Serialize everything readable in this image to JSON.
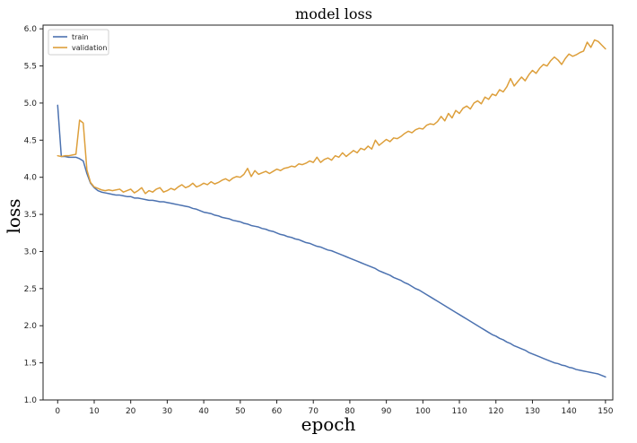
{
  "chart_data": {
    "type": "line",
    "title": "model loss",
    "xlabel": "epoch",
    "ylabel": "loss",
    "xlim": [
      -4,
      152
    ],
    "ylim": [
      1.0,
      6.05
    ],
    "xticks": [
      0,
      10,
      20,
      30,
      40,
      50,
      60,
      70,
      80,
      90,
      100,
      110,
      120,
      130,
      140,
      150
    ],
    "yticks": [
      1.0,
      1.5,
      2.0,
      2.5,
      3.0,
      3.5,
      4.0,
      4.5,
      5.0,
      5.5,
      6.0
    ],
    "grid": false,
    "legend_position": "top-left",
    "series": [
      {
        "name": "train",
        "color": "#4c72b0",
        "points": [
          [
            0,
            4.97
          ],
          [
            1,
            4.28
          ],
          [
            2,
            4.28
          ],
          [
            3,
            4.27
          ],
          [
            4,
            4.27
          ],
          [
            5,
            4.27
          ],
          [
            6,
            4.25
          ],
          [
            7,
            4.22
          ],
          [
            8,
            4.05
          ],
          [
            9,
            3.92
          ],
          [
            10,
            3.86
          ],
          [
            11,
            3.82
          ],
          [
            12,
            3.8
          ],
          [
            13,
            3.79
          ],
          [
            14,
            3.78
          ],
          [
            15,
            3.77
          ],
          [
            16,
            3.76
          ],
          [
            17,
            3.76
          ],
          [
            18,
            3.75
          ],
          [
            19,
            3.74
          ],
          [
            20,
            3.74
          ],
          [
            21,
            3.72
          ],
          [
            22,
            3.72
          ],
          [
            23,
            3.71
          ],
          [
            24,
            3.7
          ],
          [
            25,
            3.69
          ],
          [
            26,
            3.69
          ],
          [
            27,
            3.68
          ],
          [
            28,
            3.67
          ],
          [
            29,
            3.67
          ],
          [
            30,
            3.66
          ],
          [
            31,
            3.65
          ],
          [
            32,
            3.64
          ],
          [
            33,
            3.63
          ],
          [
            34,
            3.62
          ],
          [
            35,
            3.61
          ],
          [
            36,
            3.6
          ],
          [
            37,
            3.58
          ],
          [
            38,
            3.57
          ],
          [
            39,
            3.55
          ],
          [
            40,
            3.53
          ],
          [
            41,
            3.52
          ],
          [
            42,
            3.51
          ],
          [
            43,
            3.49
          ],
          [
            44,
            3.48
          ],
          [
            45,
            3.46
          ],
          [
            46,
            3.45
          ],
          [
            47,
            3.44
          ],
          [
            48,
            3.42
          ],
          [
            49,
            3.41
          ],
          [
            50,
            3.4
          ],
          [
            51,
            3.38
          ],
          [
            52,
            3.37
          ],
          [
            53,
            3.35
          ],
          [
            54,
            3.34
          ],
          [
            55,
            3.33
          ],
          [
            56,
            3.31
          ],
          [
            57,
            3.3
          ],
          [
            58,
            3.28
          ],
          [
            59,
            3.27
          ],
          [
            60,
            3.25
          ],
          [
            61,
            3.23
          ],
          [
            62,
            3.22
          ],
          [
            63,
            3.2
          ],
          [
            64,
            3.19
          ],
          [
            65,
            3.17
          ],
          [
            66,
            3.16
          ],
          [
            67,
            3.14
          ],
          [
            68,
            3.12
          ],
          [
            69,
            3.11
          ],
          [
            70,
            3.09
          ],
          [
            71,
            3.07
          ],
          [
            72,
            3.06
          ],
          [
            73,
            3.04
          ],
          [
            74,
            3.02
          ],
          [
            75,
            3.01
          ],
          [
            76,
            2.99
          ],
          [
            77,
            2.97
          ],
          [
            78,
            2.95
          ],
          [
            79,
            2.93
          ],
          [
            80,
            2.91
          ],
          [
            81,
            2.89
          ],
          [
            82,
            2.87
          ],
          [
            83,
            2.85
          ],
          [
            84,
            2.83
          ],
          [
            85,
            2.81
          ],
          [
            86,
            2.79
          ],
          [
            87,
            2.77
          ],
          [
            88,
            2.74
          ],
          [
            89,
            2.72
          ],
          [
            90,
            2.7
          ],
          [
            91,
            2.68
          ],
          [
            92,
            2.65
          ],
          [
            93,
            2.63
          ],
          [
            94,
            2.61
          ],
          [
            95,
            2.58
          ],
          [
            96,
            2.56
          ],
          [
            97,
            2.53
          ],
          [
            98,
            2.5
          ],
          [
            99,
            2.48
          ],
          [
            100,
            2.45
          ],
          [
            101,
            2.42
          ],
          [
            102,
            2.39
          ],
          [
            103,
            2.36
          ],
          [
            104,
            2.33
          ],
          [
            105,
            2.3
          ],
          [
            106,
            2.27
          ],
          [
            107,
            2.24
          ],
          [
            108,
            2.21
          ],
          [
            109,
            2.18
          ],
          [
            110,
            2.15
          ],
          [
            111,
            2.12
          ],
          [
            112,
            2.09
          ],
          [
            113,
            2.06
          ],
          [
            114,
            2.03
          ],
          [
            115,
            2.0
          ],
          [
            116,
            1.97
          ],
          [
            117,
            1.94
          ],
          [
            118,
            1.91
          ],
          [
            119,
            1.88
          ],
          [
            120,
            1.86
          ],
          [
            121,
            1.83
          ],
          [
            122,
            1.81
          ],
          [
            123,
            1.78
          ],
          [
            124,
            1.76
          ],
          [
            125,
            1.73
          ],
          [
            126,
            1.71
          ],
          [
            127,
            1.69
          ],
          [
            128,
            1.67
          ],
          [
            129,
            1.64
          ],
          [
            130,
            1.62
          ],
          [
            131,
            1.6
          ],
          [
            132,
            1.58
          ],
          [
            133,
            1.56
          ],
          [
            134,
            1.54
          ],
          [
            135,
            1.52
          ],
          [
            136,
            1.5
          ],
          [
            137,
            1.49
          ],
          [
            138,
            1.47
          ],
          [
            139,
            1.46
          ],
          [
            140,
            1.44
          ],
          [
            141,
            1.43
          ],
          [
            142,
            1.41
          ],
          [
            143,
            1.4
          ],
          [
            144,
            1.39
          ],
          [
            145,
            1.38
          ],
          [
            146,
            1.37
          ],
          [
            147,
            1.36
          ],
          [
            148,
            1.35
          ],
          [
            149,
            1.33
          ],
          [
            150,
            1.31
          ]
        ]
      },
      {
        "name": "validation",
        "color": "#dd9f3b",
        "points": [
          [
            0,
            4.29
          ],
          [
            1,
            4.28
          ],
          [
            2,
            4.29
          ],
          [
            3,
            4.29
          ],
          [
            4,
            4.3
          ],
          [
            5,
            4.31
          ],
          [
            6,
            4.77
          ],
          [
            7,
            4.73
          ],
          [
            8,
            4.1
          ],
          [
            9,
            3.93
          ],
          [
            10,
            3.87
          ],
          [
            11,
            3.85
          ],
          [
            12,
            3.83
          ],
          [
            13,
            3.82
          ],
          [
            14,
            3.83
          ],
          [
            15,
            3.82
          ],
          [
            16,
            3.83
          ],
          [
            17,
            3.84
          ],
          [
            18,
            3.8
          ],
          [
            19,
            3.82
          ],
          [
            20,
            3.84
          ],
          [
            21,
            3.79
          ],
          [
            22,
            3.82
          ],
          [
            23,
            3.86
          ],
          [
            24,
            3.78
          ],
          [
            25,
            3.82
          ],
          [
            26,
            3.8
          ],
          [
            27,
            3.84
          ],
          [
            28,
            3.86
          ],
          [
            29,
            3.8
          ],
          [
            30,
            3.82
          ],
          [
            31,
            3.85
          ],
          [
            32,
            3.83
          ],
          [
            33,
            3.87
          ],
          [
            34,
            3.9
          ],
          [
            35,
            3.86
          ],
          [
            36,
            3.88
          ],
          [
            37,
            3.92
          ],
          [
            38,
            3.87
          ],
          [
            39,
            3.89
          ],
          [
            40,
            3.92
          ],
          [
            41,
            3.9
          ],
          [
            42,
            3.94
          ],
          [
            43,
            3.91
          ],
          [
            44,
            3.93
          ],
          [
            45,
            3.96
          ],
          [
            46,
            3.98
          ],
          [
            47,
            3.95
          ],
          [
            48,
            3.99
          ],
          [
            49,
            4.01
          ],
          [
            50,
            4.0
          ],
          [
            51,
            4.04
          ],
          [
            52,
            4.12
          ],
          [
            53,
            4.01
          ],
          [
            54,
            4.09
          ],
          [
            55,
            4.04
          ],
          [
            56,
            4.06
          ],
          [
            57,
            4.08
          ],
          [
            58,
            4.05
          ],
          [
            59,
            4.08
          ],
          [
            60,
            4.11
          ],
          [
            61,
            4.09
          ],
          [
            62,
            4.12
          ],
          [
            63,
            4.13
          ],
          [
            64,
            4.15
          ],
          [
            65,
            4.14
          ],
          [
            66,
            4.18
          ],
          [
            67,
            4.17
          ],
          [
            68,
            4.19
          ],
          [
            69,
            4.22
          ],
          [
            70,
            4.2
          ],
          [
            71,
            4.27
          ],
          [
            72,
            4.2
          ],
          [
            73,
            4.24
          ],
          [
            74,
            4.26
          ],
          [
            75,
            4.23
          ],
          [
            76,
            4.29
          ],
          [
            77,
            4.27
          ],
          [
            78,
            4.33
          ],
          [
            79,
            4.28
          ],
          [
            80,
            4.32
          ],
          [
            81,
            4.36
          ],
          [
            82,
            4.33
          ],
          [
            83,
            4.39
          ],
          [
            84,
            4.37
          ],
          [
            85,
            4.42
          ],
          [
            86,
            4.38
          ],
          [
            87,
            4.5
          ],
          [
            88,
            4.43
          ],
          [
            89,
            4.47
          ],
          [
            90,
            4.51
          ],
          [
            91,
            4.48
          ],
          [
            92,
            4.53
          ],
          [
            93,
            4.52
          ],
          [
            94,
            4.55
          ],
          [
            95,
            4.59
          ],
          [
            96,
            4.62
          ],
          [
            97,
            4.6
          ],
          [
            98,
            4.64
          ],
          [
            99,
            4.66
          ],
          [
            100,
            4.65
          ],
          [
            101,
            4.7
          ],
          [
            102,
            4.72
          ],
          [
            103,
            4.71
          ],
          [
            104,
            4.75
          ],
          [
            105,
            4.82
          ],
          [
            106,
            4.76
          ],
          [
            107,
            4.86
          ],
          [
            108,
            4.8
          ],
          [
            109,
            4.9
          ],
          [
            110,
            4.86
          ],
          [
            111,
            4.93
          ],
          [
            112,
            4.96
          ],
          [
            113,
            4.92
          ],
          [
            114,
            5.0
          ],
          [
            115,
            5.03
          ],
          [
            116,
            4.99
          ],
          [
            117,
            5.08
          ],
          [
            118,
            5.05
          ],
          [
            119,
            5.12
          ],
          [
            120,
            5.1
          ],
          [
            121,
            5.18
          ],
          [
            122,
            5.15
          ],
          [
            123,
            5.22
          ],
          [
            124,
            5.33
          ],
          [
            125,
            5.23
          ],
          [
            126,
            5.29
          ],
          [
            127,
            5.35
          ],
          [
            128,
            5.3
          ],
          [
            129,
            5.38
          ],
          [
            130,
            5.44
          ],
          [
            131,
            5.4
          ],
          [
            132,
            5.47
          ],
          [
            133,
            5.52
          ],
          [
            134,
            5.5
          ],
          [
            135,
            5.57
          ],
          [
            136,
            5.62
          ],
          [
            137,
            5.58
          ],
          [
            138,
            5.52
          ],
          [
            139,
            5.6
          ],
          [
            140,
            5.66
          ],
          [
            141,
            5.63
          ],
          [
            142,
            5.65
          ],
          [
            143,
            5.68
          ],
          [
            144,
            5.7
          ],
          [
            145,
            5.82
          ],
          [
            146,
            5.75
          ],
          [
            147,
            5.85
          ],
          [
            148,
            5.83
          ],
          [
            149,
            5.78
          ],
          [
            150,
            5.73
          ]
        ]
      }
    ]
  }
}
